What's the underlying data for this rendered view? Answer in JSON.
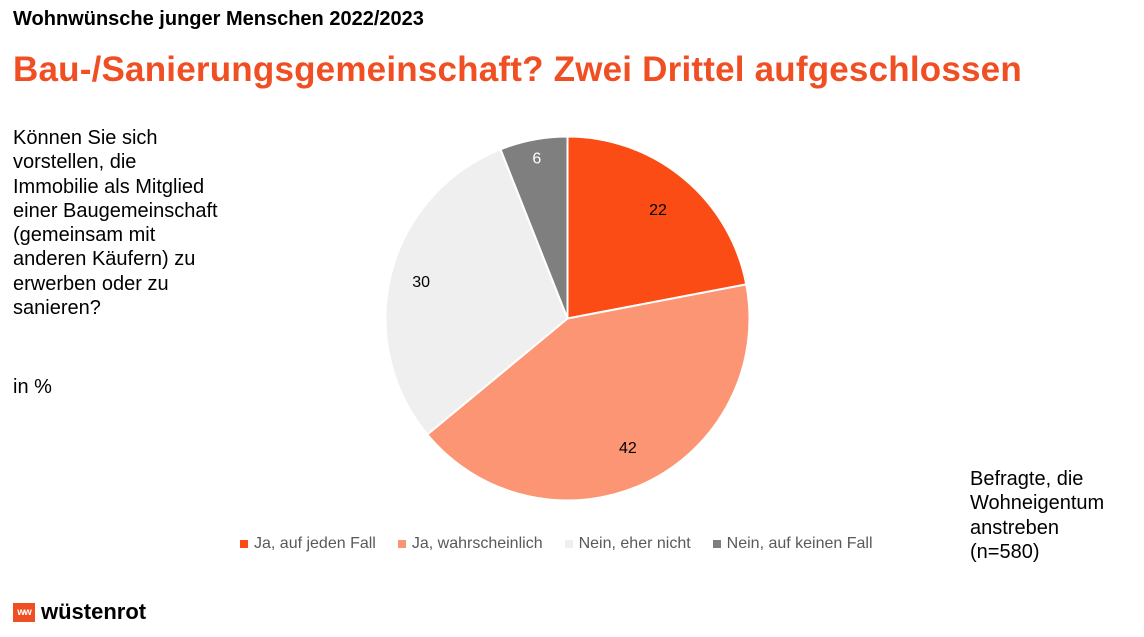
{
  "supertitle": "Wohnwünsche junger Menschen 2022/2023",
  "headline": "Bau-/Sanierungsgemeinschaft? Zwei Drittel aufgeschlossen",
  "question": "Können Sie sich\nvorstellen, die\nImmobilie als Mitglied\neiner Baugemeinschaft\n(gemeinsam mit\nanderen Käufern) zu\nerwerben oder zu\nsanieren?",
  "unit": "in %",
  "basis": "Befragte, die\nWohneigentum\nanstreben\n(n=580)",
  "brand": {
    "mark": "ww",
    "name": "wüstenrot"
  },
  "colors": {
    "headline": "#f04e23",
    "brand": "#f04e23"
  },
  "chart_data": {
    "type": "pie",
    "title": "",
    "start": "12 o'clock",
    "direction": "clockwise",
    "legend_position": "bottom",
    "slices": [
      {
        "name": "Ja, auf jeden Fall",
        "value": 22,
        "label": "22",
        "color": "#fa4c14",
        "label_color": "#000000"
      },
      {
        "name": "Ja, wahrscheinlich",
        "value": 42,
        "label": "42",
        "color": "#fb9573",
        "label_color": "#000000"
      },
      {
        "name": "Nein, eher nicht",
        "value": 30,
        "label": "30",
        "color": "#efefef",
        "label_color": "#000000"
      },
      {
        "name": "Nein, auf keinen Fall",
        "value": 6,
        "label": "6",
        "color": "#7f7f7f",
        "label_color": "#ffffff"
      }
    ]
  }
}
